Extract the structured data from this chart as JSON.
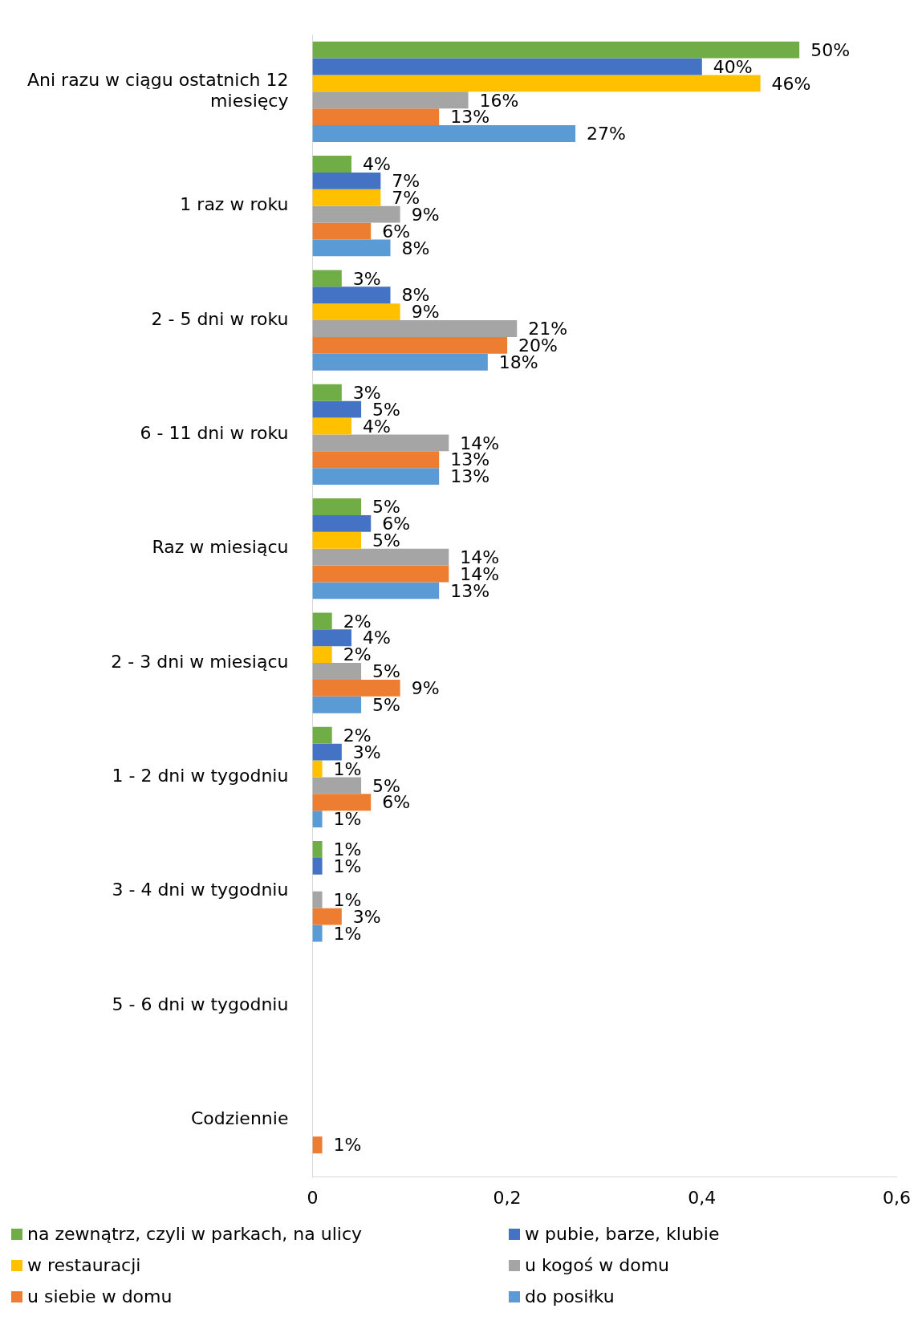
{
  "chart_data": {
    "type": "bar",
    "orientation": "horizontal",
    "categories": [
      "Ani razu w ciągu ostatnich 12 miesięcy",
      "1 raz w roku",
      "2 - 5 dni w roku",
      "6 - 11 dni w roku",
      "Raz w miesiącu",
      "2 - 3 dni w miesiącu",
      "1 - 2 dni w tygodniu",
      "3 - 4 dni w tygodniu",
      "5 - 6 dni w tygodniu",
      "Codziennie"
    ],
    "series": [
      {
        "name": "na zewnątrz, czyli w parkach, na ulicy",
        "color": "#70ad47",
        "values": [
          0.5,
          0.04,
          0.03,
          0.03,
          0.05,
          0.02,
          0.02,
          0.01,
          null,
          null
        ],
        "value_labels": [
          "50%",
          "4%",
          "3%",
          "3%",
          "5%",
          "2%",
          "2%",
          "1%",
          null,
          null
        ]
      },
      {
        "name": "w pubie, barze, klubie",
        "color": "#4472c4",
        "values": [
          0.4,
          0.07,
          0.08,
          0.05,
          0.06,
          0.04,
          0.03,
          0.01,
          null,
          null
        ],
        "value_labels": [
          "40%",
          "7%",
          "8%",
          "5%",
          "6%",
          "4%",
          "3%",
          "1%",
          null,
          null
        ]
      },
      {
        "name": "w restauracji",
        "color": "#ffc000",
        "values": [
          0.46,
          0.07,
          0.09,
          0.04,
          0.05,
          0.02,
          0.01,
          null,
          null,
          null
        ],
        "value_labels": [
          "46%",
          "7%",
          "9%",
          "4%",
          "5%",
          "2%",
          "1%",
          null,
          null,
          null
        ]
      },
      {
        "name": "u kogoś w domu",
        "color": "#a5a5a5",
        "values": [
          0.16,
          0.09,
          0.21,
          0.14,
          0.14,
          0.05,
          0.05,
          0.01,
          null,
          null
        ],
        "value_labels": [
          "16%",
          "9%",
          "21%",
          "14%",
          "14%",
          "5%",
          "5%",
          "1%",
          null,
          null
        ]
      },
      {
        "name": "u siebie w domu",
        "color": "#ed7d31",
        "values": [
          0.13,
          0.06,
          0.2,
          0.13,
          0.14,
          0.09,
          0.06,
          0.03,
          null,
          0.01
        ],
        "value_labels": [
          "13%",
          "6%",
          "20%",
          "13%",
          "14%",
          "9%",
          "6%",
          "3%",
          null,
          "1%"
        ]
      },
      {
        "name": "do posiłku",
        "color": "#5b9bd5",
        "values": [
          0.27,
          0.08,
          0.18,
          0.13,
          0.13,
          0.05,
          0.01,
          0.01,
          null,
          null
        ],
        "value_labels": [
          "27%",
          "8%",
          "18%",
          "13%",
          "13%",
          "5%",
          "1%",
          "1%",
          null,
          null
        ]
      }
    ],
    "xlim": [
      0,
      0.6
    ],
    "xticks": [
      {
        "value": 0,
        "label": "0"
      },
      {
        "value": 0.2,
        "label": "0,2"
      },
      {
        "value": 0.4,
        "label": "0,4"
      },
      {
        "value": 0.6,
        "label": "0,6"
      }
    ],
    "grid": false,
    "legend": "bottom"
  }
}
